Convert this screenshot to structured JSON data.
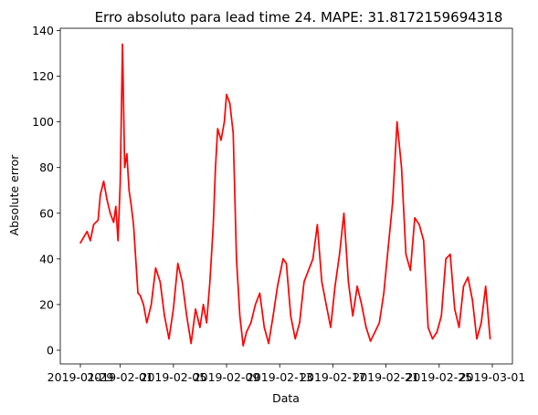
{
  "chart_data": {
    "type": "line",
    "title": "Erro absoluto para lead time 24. MAPE: 31.8172159694318",
    "xlabel": "Data",
    "ylabel": "Absolute error",
    "x_ticks": [
      "2019-01-29",
      "2019-02-01",
      "2019-02-05",
      "2019-02-09",
      "2019-02-13",
      "2019-02-17",
      "2019-02-21",
      "2019-02-25",
      "2019-03-01"
    ],
    "x_range": [
      "2019-01-29",
      "2019-03-01"
    ],
    "ylim": [
      -6,
      141
    ],
    "y_ticks": [
      0,
      20,
      40,
      60,
      80,
      100,
      120,
      140
    ],
    "grid": false,
    "series": [
      {
        "color": "#ff0000",
        "x": [
          "2019-01-29T00:00",
          "2019-01-29T12:00",
          "2019-01-29T18:00",
          "2019-01-30T00:00",
          "2019-01-30T08:00",
          "2019-01-30T12:00",
          "2019-01-30T18:00",
          "2019-01-31T00:00",
          "2019-01-31T06:00",
          "2019-01-31T12:00",
          "2019-01-31T16:00",
          "2019-01-31T20:00",
          "2019-02-01T00:00",
          "2019-02-01T04:00",
          "2019-02-01T08:00",
          "2019-02-01T12:00",
          "2019-02-01T16:00",
          "2019-02-01T20:00",
          "2019-02-02T00:00",
          "2019-02-02T04:00",
          "2019-02-02T08:00",
          "2019-02-02T12:00",
          "2019-02-02T18:00",
          "2019-02-03T00:00",
          "2019-02-03T08:00",
          "2019-02-03T16:00",
          "2019-02-04T00:00",
          "2019-02-04T08:00",
          "2019-02-04T16:00",
          "2019-02-05T00:00",
          "2019-02-05T08:00",
          "2019-02-05T16:00",
          "2019-02-06T00:00",
          "2019-02-06T08:00",
          "2019-02-06T16:00",
          "2019-02-07T00:00",
          "2019-02-07T06:00",
          "2019-02-07T12:00",
          "2019-02-07T18:00",
          "2019-02-08T00:00",
          "2019-02-08T04:00",
          "2019-02-08T08:00",
          "2019-02-08T14:00",
          "2019-02-08T20:00",
          "2019-02-09T00:00",
          "2019-02-09T06:00",
          "2019-02-09T12:00",
          "2019-02-09T18:00",
          "2019-02-10T00:00",
          "2019-02-10T06:00",
          "2019-02-10T12:00",
          "2019-02-10T20:00",
          "2019-02-11T04:00",
          "2019-02-11T12:00",
          "2019-02-11T20:00",
          "2019-02-12T04:00",
          "2019-02-12T12:00",
          "2019-02-12T20:00",
          "2019-02-13T06:00",
          "2019-02-13T12:00",
          "2019-02-13T20:00",
          "2019-02-14T04:00",
          "2019-02-14T12:00",
          "2019-02-14T20:00",
          "2019-02-15T04:00",
          "2019-02-15T12:00",
          "2019-02-15T20:00",
          "2019-02-16T04:00",
          "2019-02-16T12:00",
          "2019-02-16T20:00",
          "2019-02-17T04:00",
          "2019-02-17T12:00",
          "2019-02-17T20:00",
          "2019-02-18T04:00",
          "2019-02-18T12:00",
          "2019-02-18T20:00",
          "2019-02-19T04:00",
          "2019-02-19T12:00",
          "2019-02-19T20:00",
          "2019-02-20T04:00",
          "2019-02-20T12:00",
          "2019-02-20T20:00",
          "2019-02-21T04:00",
          "2019-02-21T12:00",
          "2019-02-21T20:00",
          "2019-02-22T04:00",
          "2019-02-22T12:00",
          "2019-02-22T20:00",
          "2019-02-23T04:00",
          "2019-02-23T12:00",
          "2019-02-23T20:00",
          "2019-02-24T04:00",
          "2019-02-24T12:00",
          "2019-02-24T20:00",
          "2019-02-25T04:00",
          "2019-02-25T12:00",
          "2019-02-25T20:00",
          "2019-02-26T04:00",
          "2019-02-26T12:00",
          "2019-02-26T20:00",
          "2019-02-27T04:00",
          "2019-02-27T12:00",
          "2019-02-27T20:00",
          "2019-02-28T04:00",
          "2019-02-28T12:00",
          "2019-02-28T20:00"
        ],
        "y": [
          47,
          52,
          48,
          55,
          57,
          68,
          74,
          66,
          60,
          56,
          63,
          48,
          73,
          134,
          80,
          86,
          70,
          63,
          55,
          40,
          25,
          24,
          20,
          12,
          20,
          36,
          30,
          15,
          5,
          18,
          38,
          30,
          15,
          3,
          18,
          10,
          20,
          12,
          30,
          55,
          80,
          97,
          92,
          100,
          112,
          108,
          95,
          40,
          15,
          2,
          8,
          12,
          20,
          25,
          10,
          3,
          15,
          28,
          40,
          38,
          15,
          5,
          12,
          30,
          35,
          40,
          55,
          30,
          20,
          10,
          28,
          42,
          60,
          30,
          15,
          28,
          20,
          10,
          4,
          8,
          12,
          25,
          45,
          65,
          100,
          80,
          42,
          35,
          58,
          55,
          48,
          10,
          5,
          8,
          15,
          40,
          42,
          18,
          10,
          28,
          32,
          22,
          5,
          12,
          28,
          5
        ]
      }
    ]
  }
}
